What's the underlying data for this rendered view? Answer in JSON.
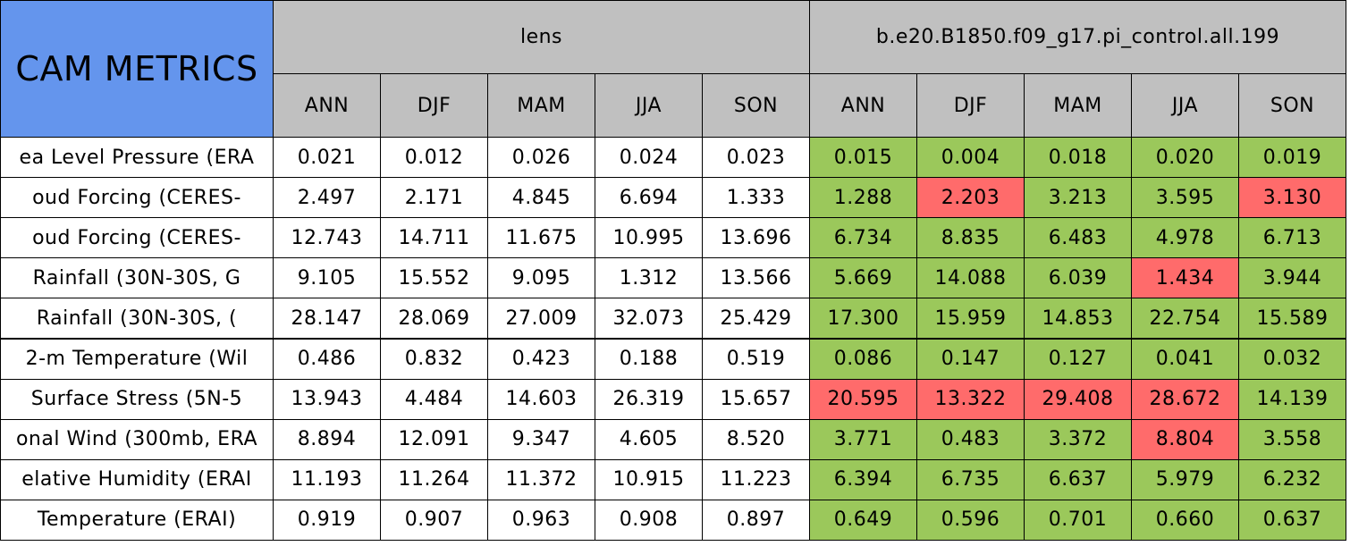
{
  "header": {
    "title": "CAM METRICS",
    "title_color": "#6495ed",
    "header_color": "#c0c0c0",
    "groups": [
      "lens",
      "b.e20.B1850.f09_g17.pi_control.all.199"
    ],
    "seasons": [
      "ANN",
      "DJF",
      "MAM",
      "JJA",
      "SON"
    ]
  },
  "table": {
    "rows": [
      {
        "label": "ea Level Pressure (ERA",
        "lens": [
          "0.021",
          "0.012",
          "0.026",
          "0.024",
          "0.023"
        ],
        "control": [
          "0.015",
          "0.004",
          "0.018",
          "0.020",
          "0.019"
        ],
        "fills": [
          "#9bc85b",
          "#9bc85b",
          "#9bc85b",
          "#9bc85b",
          "#9bc85b"
        ]
      },
      {
        "label": "oud Forcing (CERES-",
        "lens": [
          "2.497",
          "2.171",
          "4.845",
          "6.694",
          "1.333"
        ],
        "control": [
          "1.288",
          "2.203",
          "3.213",
          "3.595",
          "3.130"
        ],
        "fills": [
          "#9bc85b",
          "#ff6b6b",
          "#9bc85b",
          "#9bc85b",
          "#ff6b6b"
        ]
      },
      {
        "label": "oud Forcing (CERES-",
        "lens": [
          "12.743",
          "14.711",
          "11.675",
          "10.995",
          "13.696"
        ],
        "control": [
          "6.734",
          "8.835",
          "6.483",
          "4.978",
          "6.713"
        ],
        "fills": [
          "#9bc85b",
          "#9bc85b",
          "#9bc85b",
          "#9bc85b",
          "#9bc85b"
        ]
      },
      {
        "label": "Rainfall (30N-30S, G",
        "lens": [
          "9.105",
          "15.552",
          "9.095",
          "1.312",
          "13.566"
        ],
        "control": [
          "5.669",
          "14.088",
          "6.039",
          "1.434",
          "3.944"
        ],
        "fills": [
          "#9bc85b",
          "#9bc85b",
          "#9bc85b",
          "#ff6b6b",
          "#9bc85b"
        ]
      },
      {
        "label": "Rainfall (30N-30S, (",
        "lens": [
          "28.147",
          "28.069",
          "27.009",
          "32.073",
          "25.429"
        ],
        "control": [
          "17.300",
          "15.959",
          "14.853",
          "22.754",
          "15.589"
        ],
        "fills": [
          "#9bc85b",
          "#9bc85b",
          "#9bc85b",
          "#9bc85b",
          "#9bc85b"
        ]
      },
      {
        "label": "2-m Temperature (Wil",
        "lens": [
          "0.486",
          "0.832",
          "0.423",
          "0.188",
          "0.519"
        ],
        "control": [
          "0.086",
          "0.147",
          "0.127",
          "0.041",
          "0.032"
        ],
        "fills": [
          "#9bc85b",
          "#9bc85b",
          "#9bc85b",
          "#9bc85b",
          "#9bc85b"
        ]
      },
      {
        "label": "Surface Stress (5N-5",
        "lens": [
          "13.943",
          "4.484",
          "14.603",
          "26.319",
          "15.657"
        ],
        "control": [
          "20.595",
          "13.322",
          "29.408",
          "28.672",
          "14.139"
        ],
        "fills": [
          "#ff6b6b",
          "#ff6b6b",
          "#ff6b6b",
          "#ff6b6b",
          "#9bc85b"
        ]
      },
      {
        "label": "onal Wind (300mb, ERA",
        "lens": [
          "8.894",
          "12.091",
          "9.347",
          "4.605",
          "8.520"
        ],
        "control": [
          "3.771",
          "0.483",
          "3.372",
          "8.804",
          "3.558"
        ],
        "fills": [
          "#9bc85b",
          "#9bc85b",
          "#9bc85b",
          "#ff6b6b",
          "#9bc85b"
        ]
      },
      {
        "label": "elative Humidity (ERAI",
        "lens": [
          "11.193",
          "11.264",
          "11.372",
          "10.915",
          "11.223"
        ],
        "control": [
          "6.394",
          "6.735",
          "6.637",
          "5.979",
          "6.232"
        ],
        "fills": [
          "#9bc85b",
          "#9bc85b",
          "#9bc85b",
          "#9bc85b",
          "#9bc85b"
        ]
      },
      {
        "label": "Temperature (ERAI)",
        "lens": [
          "0.919",
          "0.907",
          "0.963",
          "0.908",
          "0.897"
        ],
        "control": [
          "0.649",
          "0.596",
          "0.701",
          "0.660",
          "0.637"
        ],
        "fills": [
          "#9bc85b",
          "#9bc85b",
          "#9bc85b",
          "#9bc85b",
          "#9bc85b"
        ]
      }
    ]
  }
}
